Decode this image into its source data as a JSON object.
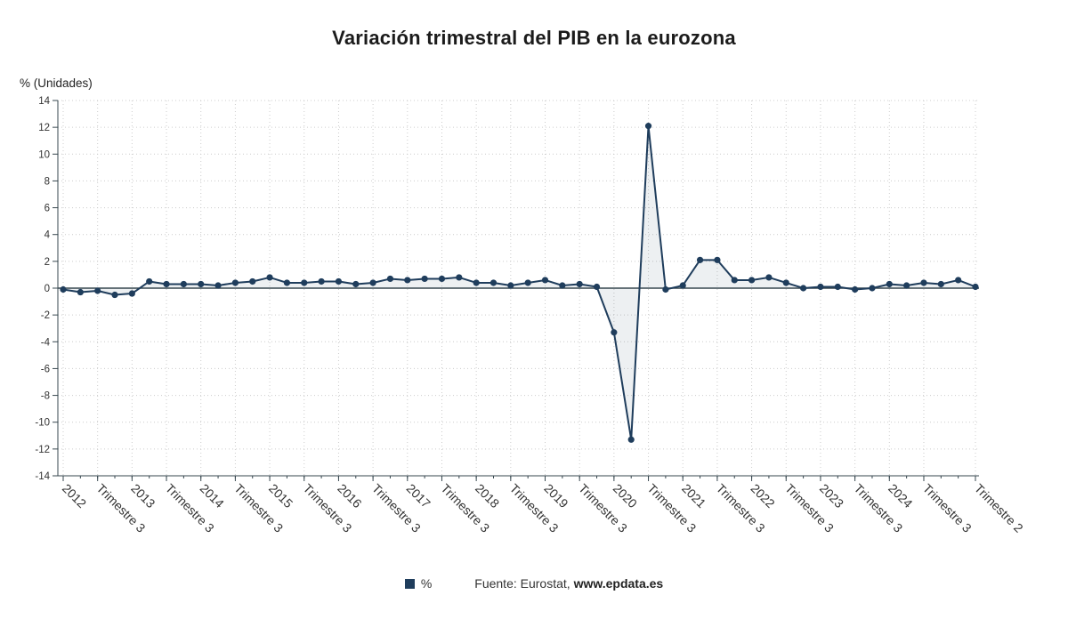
{
  "title": "Variación trimestral del PIB en la eurozona",
  "y_axis_title": "% (Unidades)",
  "legend": {
    "series_label": "%",
    "source_prefix": "Fuente: Eurostat, ",
    "source_site": "www.epdata.es"
  },
  "colors": {
    "line": "#1f3d5c",
    "fill": "rgba(31,61,92,0.08)",
    "grid": "#cccccc",
    "axis": "#37474f",
    "text": "#333333"
  },
  "chart_data": {
    "type": "line",
    "title": "Variación trimestral del PIB en la eurozona",
    "xlabel": "",
    "ylabel": "% (Unidades)",
    "series_name": "%",
    "ylim": [
      -14,
      14
    ],
    "y_tick_step": 2,
    "grid": true,
    "legend_position": "bottom",
    "x_start": "2012 Trimestre 1",
    "x_end": "2025 Trimestre 2",
    "frequency": "quarterly",
    "y_ticks": [
      14,
      12,
      10,
      8,
      6,
      4,
      2,
      0,
      -2,
      -4,
      -6,
      -8,
      -10,
      -12,
      -14
    ],
    "x_ticks": [
      {
        "i": 0,
        "label": "2012"
      },
      {
        "i": 2,
        "label": "Trimestre 3"
      },
      {
        "i": 4,
        "label": "2013"
      },
      {
        "i": 6,
        "label": "Trimestre 3"
      },
      {
        "i": 8,
        "label": "2014"
      },
      {
        "i": 10,
        "label": "Trimestre 3"
      },
      {
        "i": 12,
        "label": "2015"
      },
      {
        "i": 14,
        "label": "Trimestre 3"
      },
      {
        "i": 16,
        "label": "2016"
      },
      {
        "i": 18,
        "label": "Trimestre 3"
      },
      {
        "i": 20,
        "label": "2017"
      },
      {
        "i": 22,
        "label": "Trimestre 3"
      },
      {
        "i": 24,
        "label": "2018"
      },
      {
        "i": 26,
        "label": "Trimestre 3"
      },
      {
        "i": 28,
        "label": "2019"
      },
      {
        "i": 30,
        "label": "Trimestre 3"
      },
      {
        "i": 32,
        "label": "2020"
      },
      {
        "i": 34,
        "label": "Trimestre 3"
      },
      {
        "i": 36,
        "label": "2021"
      },
      {
        "i": 38,
        "label": "Trimestre 3"
      },
      {
        "i": 40,
        "label": "2022"
      },
      {
        "i": 42,
        "label": "Trimestre 3"
      },
      {
        "i": 44,
        "label": "2023"
      },
      {
        "i": 46,
        "label": "Trimestre 3"
      },
      {
        "i": 48,
        "label": "2024"
      },
      {
        "i": 50,
        "label": "Trimestre 3"
      },
      {
        "i": 53,
        "label": "Trimestre 2"
      }
    ],
    "values": [
      -0.1,
      -0.3,
      -0.2,
      -0.5,
      -0.4,
      0.5,
      0.3,
      0.3,
      0.3,
      0.2,
      0.4,
      0.5,
      0.8,
      0.4,
      0.4,
      0.5,
      0.5,
      0.3,
      0.4,
      0.7,
      0.6,
      0.7,
      0.7,
      0.8,
      0.4,
      0.4,
      0.2,
      0.4,
      0.6,
      0.2,
      0.3,
      0.1,
      -3.3,
      -11.3,
      12.1,
      -0.1,
      0.2,
      2.1,
      2.1,
      0.6,
      0.6,
      0.8,
      0.4,
      0.0,
      0.1,
      0.1,
      -0.1,
      0.0,
      0.3,
      0.2,
      0.4,
      0.3,
      0.6,
      0.1
    ]
  }
}
